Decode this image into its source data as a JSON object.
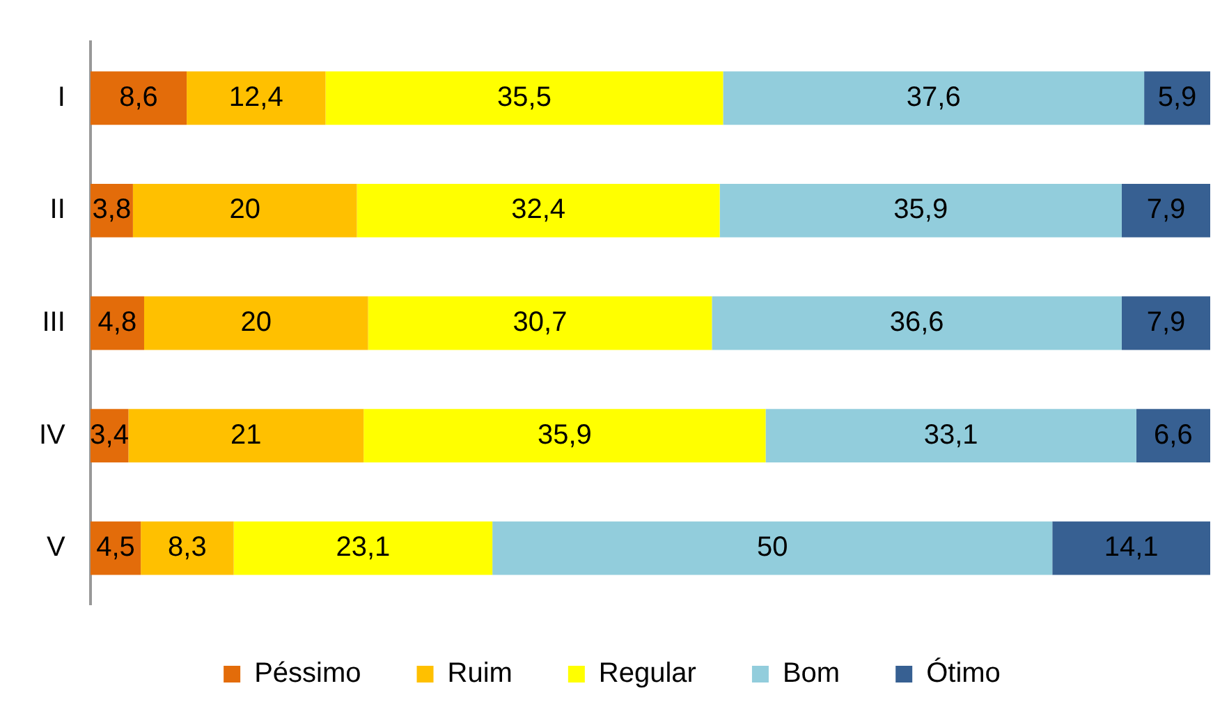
{
  "chart_data": {
    "type": "bar",
    "orientation": "horizontal",
    "stacked": true,
    "categories": [
      "I",
      "II",
      "III",
      "IV",
      "V"
    ],
    "series": [
      {
        "name": "Péssimo",
        "color": "#e36c0a",
        "values": [
          8.6,
          3.8,
          4.8,
          3.4,
          4.5
        ],
        "value_labels": [
          "8,6",
          "3,8",
          "4,8",
          "3,4",
          "4,5"
        ]
      },
      {
        "name": "Ruim",
        "color": "#ffc000",
        "values": [
          12.4,
          20,
          20,
          21,
          8.3
        ],
        "value_labels": [
          "12,4",
          "20",
          "20",
          "21",
          "8,3"
        ]
      },
      {
        "name": "Regular",
        "color": "#ffff00",
        "values": [
          35.5,
          32.4,
          30.7,
          35.9,
          23.1
        ],
        "value_labels": [
          "35,5",
          "32,4",
          "30,7",
          "35,9",
          "23,1"
        ]
      },
      {
        "name": "Bom",
        "color": "#92cddc",
        "values": [
          37.6,
          35.9,
          36.6,
          33.1,
          50
        ],
        "value_labels": [
          "37,6",
          "35,9",
          "36,6",
          "33,1",
          "50"
        ]
      },
      {
        "name": "Ótimo",
        "color": "#376092",
        "values": [
          5.9,
          7.9,
          7.9,
          6.6,
          14.1
        ],
        "value_labels": [
          "5,9",
          "7,9",
          "7,9",
          "6,6",
          "14,1"
        ]
      }
    ],
    "xlim": [
      0,
      100
    ],
    "tick_labels": "y",
    "grid": false,
    "legend": "bottom"
  }
}
